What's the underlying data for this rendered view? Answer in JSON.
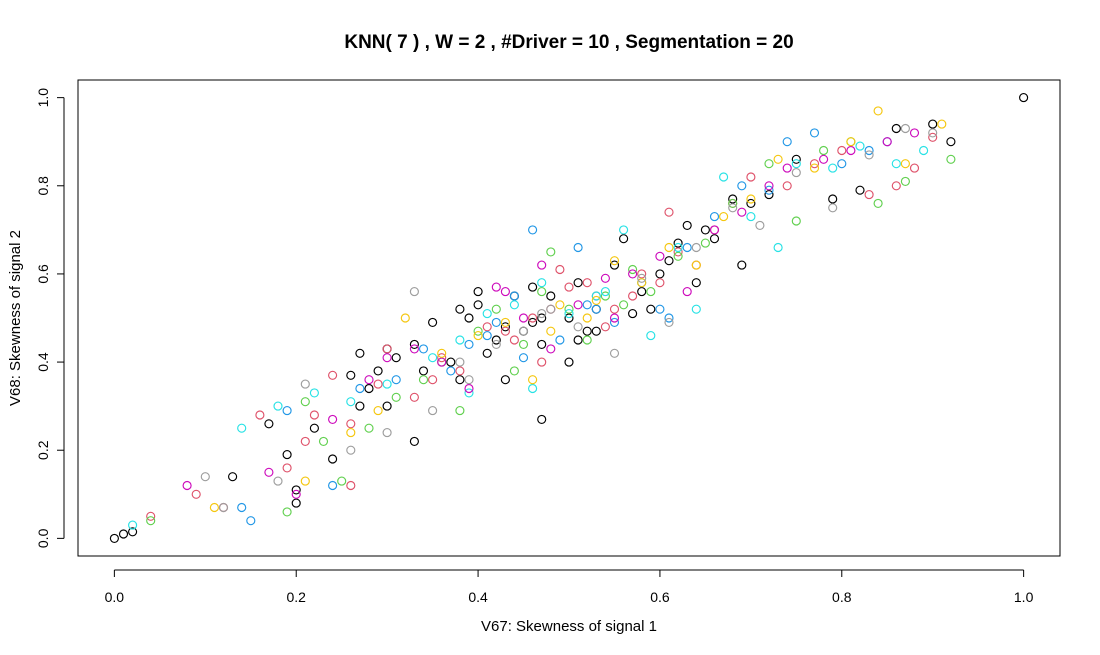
{
  "chart_data": {
    "type": "scatter",
    "title": "KNN( 7 ) , W = 2 , #Driver = 10 , Segmentation = 20",
    "xlabel": "V67: Skewness of signal 1",
    "ylabel": "V68: Skewness of signal 2",
    "xlim": [
      -0.04,
      1.04
    ],
    "ylim": [
      -0.04,
      1.04
    ],
    "xticks": [
      "0.0",
      "0.2",
      "0.4",
      "0.6",
      "0.8",
      "1.0"
    ],
    "yticks": [
      "0.0",
      "0.2",
      "0.4",
      "0.6",
      "0.8",
      "1.0"
    ],
    "grid": false,
    "legend": "none",
    "marker": "open-circle",
    "colors": [
      "#000000",
      "#DF536B",
      "#61D04F",
      "#2297E6",
      "#28E2E5",
      "#CD0BBC",
      "#F5C710",
      "#9E9E9E"
    ],
    "series": [
      {
        "color": "#000000",
        "x": [
          0.0,
          0.01,
          0.02,
          0.13,
          0.19,
          0.2,
          0.22,
          0.24,
          0.17,
          0.27,
          0.26,
          0.27,
          0.29,
          0.3,
          0.31,
          0.33,
          0.35,
          0.3,
          0.34,
          0.37,
          0.38,
          0.39,
          0.4,
          0.4,
          0.42,
          0.43,
          0.44,
          0.46,
          0.47,
          0.46,
          0.5,
          0.51,
          0.52,
          0.53,
          0.5,
          0.48,
          0.55,
          0.56,
          0.58,
          0.59,
          0.6,
          0.61,
          0.62,
          0.63,
          0.65,
          0.66,
          0.68,
          0.7,
          0.72,
          0.75,
          0.79,
          0.82,
          0.86,
          0.9,
          0.92,
          1.0,
          0.41,
          0.43,
          0.47,
          0.33,
          0.51,
          0.2,
          0.28,
          0.45,
          0.64,
          0.69,
          0.53,
          0.47,
          0.38,
          0.57
        ],
        "y": [
          0.0,
          0.01,
          0.015,
          0.14,
          0.19,
          0.08,
          0.25,
          0.18,
          0.26,
          0.3,
          0.37,
          0.42,
          0.38,
          0.43,
          0.41,
          0.44,
          0.49,
          0.3,
          0.38,
          0.4,
          0.52,
          0.5,
          0.56,
          0.53,
          0.45,
          0.48,
          0.55,
          0.57,
          0.27,
          0.49,
          0.4,
          0.45,
          0.47,
          0.52,
          0.5,
          0.55,
          0.62,
          0.68,
          0.56,
          0.52,
          0.6,
          0.63,
          0.67,
          0.71,
          0.7,
          0.68,
          0.77,
          0.76,
          0.78,
          0.86,
          0.77,
          0.79,
          0.93,
          0.94,
          0.9,
          1.0,
          0.42,
          0.36,
          0.44,
          0.22,
          0.58,
          0.11,
          0.34,
          0.47,
          0.58,
          0.62,
          0.47,
          0.5,
          0.36,
          0.51
        ]
      },
      {
        "color": "#DF536B",
        "x": [
          0.04,
          0.09,
          0.12,
          0.19,
          0.21,
          0.16,
          0.22,
          0.24,
          0.26,
          0.29,
          0.3,
          0.33,
          0.36,
          0.38,
          0.41,
          0.44,
          0.46,
          0.48,
          0.5,
          0.52,
          0.54,
          0.55,
          0.57,
          0.58,
          0.6,
          0.62,
          0.64,
          0.66,
          0.68,
          0.7,
          0.74,
          0.77,
          0.8,
          0.83,
          0.86,
          0.88,
          0.9,
          0.49,
          0.43,
          0.35,
          0.26,
          0.61,
          0.53,
          0.47
        ],
        "y": [
          0.05,
          0.1,
          0.07,
          0.16,
          0.22,
          0.28,
          0.28,
          0.37,
          0.12,
          0.35,
          0.43,
          0.32,
          0.41,
          0.38,
          0.48,
          0.45,
          0.5,
          0.52,
          0.57,
          0.58,
          0.48,
          0.52,
          0.55,
          0.6,
          0.58,
          0.65,
          0.62,
          0.7,
          0.76,
          0.82,
          0.8,
          0.85,
          0.88,
          0.78,
          0.8,
          0.84,
          0.91,
          0.61,
          0.47,
          0.36,
          0.26,
          0.74,
          0.55,
          0.4
        ]
      },
      {
        "color": "#61D04F",
        "x": [
          0.04,
          0.19,
          0.21,
          0.23,
          0.25,
          0.28,
          0.31,
          0.34,
          0.36,
          0.4,
          0.42,
          0.45,
          0.47,
          0.5,
          0.52,
          0.54,
          0.57,
          0.59,
          0.62,
          0.65,
          0.68,
          0.72,
          0.75,
          0.78,
          0.81,
          0.84,
          0.87,
          0.92,
          0.56,
          0.44,
          0.48,
          0.38
        ],
        "y": [
          0.04,
          0.06,
          0.31,
          0.22,
          0.13,
          0.25,
          0.32,
          0.36,
          0.4,
          0.47,
          0.52,
          0.44,
          0.56,
          0.52,
          0.45,
          0.55,
          0.61,
          0.56,
          0.64,
          0.67,
          0.76,
          0.85,
          0.72,
          0.88,
          0.9,
          0.76,
          0.81,
          0.86,
          0.53,
          0.38,
          0.65,
          0.29
        ]
      },
      {
        "color": "#2297E6",
        "x": [
          0.14,
          0.15,
          0.19,
          0.24,
          0.27,
          0.31,
          0.34,
          0.37,
          0.39,
          0.42,
          0.44,
          0.46,
          0.49,
          0.51,
          0.53,
          0.55,
          0.58,
          0.6,
          0.63,
          0.66,
          0.69,
          0.72,
          0.74,
          0.77,
          0.8,
          0.83,
          0.85,
          0.45,
          0.52,
          0.41,
          0.61
        ],
        "y": [
          0.07,
          0.04,
          0.29,
          0.12,
          0.34,
          0.36,
          0.43,
          0.38,
          0.44,
          0.49,
          0.55,
          0.7,
          0.45,
          0.66,
          0.52,
          0.49,
          0.58,
          0.52,
          0.66,
          0.73,
          0.8,
          0.79,
          0.9,
          0.92,
          0.85,
          0.88,
          0.9,
          0.41,
          0.53,
          0.46,
          0.5
        ]
      },
      {
        "color": "#28E2E5",
        "x": [
          0.02,
          0.14,
          0.18,
          0.22,
          0.26,
          0.3,
          0.35,
          0.38,
          0.41,
          0.44,
          0.47,
          0.5,
          0.53,
          0.56,
          0.59,
          0.62,
          0.64,
          0.67,
          0.7,
          0.73,
          0.75,
          0.79,
          0.82,
          0.86,
          0.89,
          0.54,
          0.46,
          0.39
        ],
        "y": [
          0.03,
          0.25,
          0.3,
          0.33,
          0.31,
          0.35,
          0.41,
          0.45,
          0.51,
          0.53,
          0.58,
          0.51,
          0.55,
          0.7,
          0.46,
          0.66,
          0.52,
          0.82,
          0.73,
          0.66,
          0.85,
          0.84,
          0.89,
          0.85,
          0.88,
          0.56,
          0.34,
          0.33
        ]
      },
      {
        "color": "#CD0BBC",
        "x": [
          0.08,
          0.17,
          0.2,
          0.24,
          0.28,
          0.3,
          0.33,
          0.36,
          0.39,
          0.43,
          0.45,
          0.48,
          0.51,
          0.54,
          0.57,
          0.6,
          0.63,
          0.66,
          0.69,
          0.72,
          0.74,
          0.78,
          0.81,
          0.85,
          0.88,
          0.42,
          0.55,
          0.47
        ],
        "y": [
          0.12,
          0.15,
          0.1,
          0.27,
          0.36,
          0.41,
          0.43,
          0.4,
          0.34,
          0.56,
          0.5,
          0.43,
          0.53,
          0.59,
          0.6,
          0.64,
          0.56,
          0.7,
          0.74,
          0.8,
          0.84,
          0.86,
          0.88,
          0.9,
          0.92,
          0.57,
          0.5,
          0.62
        ]
      },
      {
        "color": "#F5C710",
        "x": [
          0.11,
          0.21,
          0.26,
          0.29,
          0.32,
          0.36,
          0.4,
          0.43,
          0.46,
          0.49,
          0.52,
          0.55,
          0.58,
          0.61,
          0.64,
          0.67,
          0.7,
          0.73,
          0.77,
          0.81,
          0.84,
          0.87,
          0.91,
          0.48,
          0.53
        ],
        "y": [
          0.07,
          0.13,
          0.24,
          0.29,
          0.5,
          0.42,
          0.46,
          0.49,
          0.36,
          0.53,
          0.5,
          0.63,
          0.58,
          0.66,
          0.62,
          0.73,
          0.77,
          0.86,
          0.84,
          0.9,
          0.97,
          0.85,
          0.94,
          0.47,
          0.54
        ]
      },
      {
        "color": "#9E9E9E",
        "x": [
          0.1,
          0.12,
          0.18,
          0.21,
          0.26,
          0.3,
          0.33,
          0.35,
          0.39,
          0.42,
          0.45,
          0.48,
          0.51,
          0.55,
          0.58,
          0.61,
          0.64,
          0.68,
          0.71,
          0.75,
          0.79,
          0.83,
          0.87,
          0.9,
          0.38,
          0.47
        ],
        "y": [
          0.14,
          0.07,
          0.13,
          0.35,
          0.2,
          0.24,
          0.56,
          0.29,
          0.36,
          0.44,
          0.47,
          0.52,
          0.48,
          0.42,
          0.59,
          0.49,
          0.66,
          0.75,
          0.71,
          0.83,
          0.75,
          0.87,
          0.93,
          0.92,
          0.4,
          0.51
        ]
      }
    ]
  }
}
